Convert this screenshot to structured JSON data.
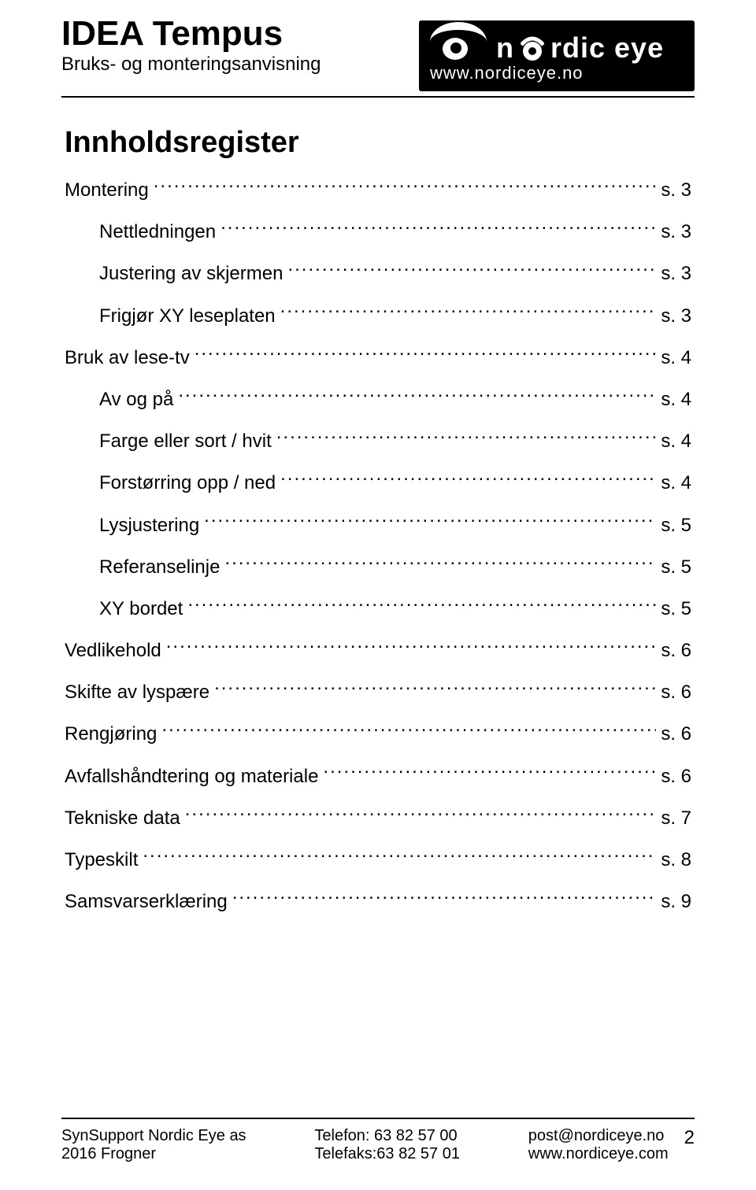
{
  "header": {
    "brand": "IDEA Tempus",
    "subtitle": "Bruks- og monteringsanvisning",
    "logo_text_left": "n",
    "logo_text_right": "rdic eye",
    "logo_url": "www.nordiceye.no"
  },
  "toc": {
    "title": "Innholdsregister",
    "entries": [
      {
        "label": "Montering",
        "page": "s. 3",
        "indent": false
      },
      {
        "label": "Nettledningen",
        "page": "s. 3",
        "indent": true
      },
      {
        "label": "Justering av skjermen",
        "page": "s. 3",
        "indent": true
      },
      {
        "label": "Frigjør XY leseplaten",
        "page": "s. 3",
        "indent": true
      },
      {
        "label": "Bruk av lese-tv",
        "page": "s. 4",
        "indent": false
      },
      {
        "label": "Av og på",
        "page": "s. 4",
        "indent": true
      },
      {
        "label": "Farge eller sort / hvit",
        "page": "s. 4",
        "indent": true
      },
      {
        "label": "Forstørring opp / ned",
        "page": "s. 4",
        "indent": true
      },
      {
        "label": "Lysjustering",
        "page": "s. 5",
        "indent": true
      },
      {
        "label": "Referanselinje",
        "page": "s. 5",
        "indent": true
      },
      {
        "label": "XY bordet",
        "page": "s. 5",
        "indent": true
      },
      {
        "label": "Vedlikehold",
        "page": "s. 6",
        "indent": false
      },
      {
        "label": "Skifte av lyspære",
        "page": "s. 6",
        "indent": false
      },
      {
        "label": "Rengjøring",
        "page": "s. 6",
        "indent": false
      },
      {
        "label": "Avfallshåndtering og materiale",
        "page": "s. 6",
        "indent": false
      },
      {
        "label": "Tekniske data",
        "page": "s. 7",
        "indent": false
      },
      {
        "label": "Typeskilt",
        "page": "s. 8",
        "indent": false
      },
      {
        "label": "Samsvarserklæring",
        "page": "s. 9",
        "indent": false
      }
    ]
  },
  "footer": {
    "left_line1": "SynSupport Nordic Eye as",
    "left_line2": "2016 Frogner",
    "mid_line1": "Telefon: 63 82 57 00",
    "mid_line2": "Telefaks:63 82 57 01",
    "right_line1": "post@nordiceye.no",
    "right_line2": "www.nordiceye.com",
    "page_number": "2"
  },
  "colors": {
    "text": "#000000",
    "background": "#ffffff",
    "logo_bg": "#000000",
    "logo_text": "#ffffff"
  }
}
